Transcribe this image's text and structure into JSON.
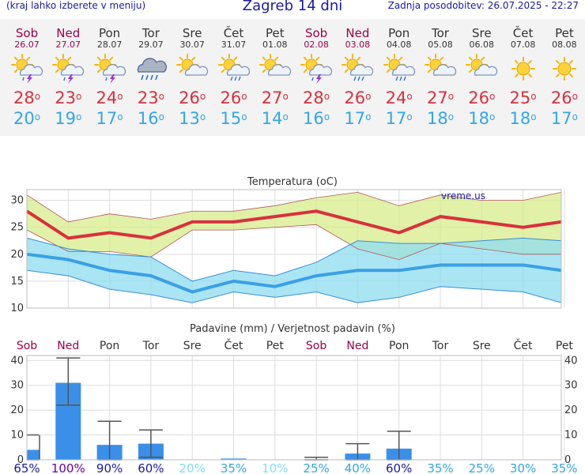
{
  "header": {
    "menu_note": "(kraj lahko izberete v meniju)",
    "title": "Zagreb 14 dni",
    "updated": "Zadnja posodobitev: 26.07.2025 - 22:27"
  },
  "days": [
    {
      "day": "Sob",
      "date": "26.07",
      "weekend": true,
      "icon": "sun-cloud-lightning-icon",
      "max": "28",
      "min": "20"
    },
    {
      "day": "Ned",
      "date": "27.07",
      "weekend": true,
      "icon": "sun-cloud-lightning-icon",
      "max": "23",
      "min": "19"
    },
    {
      "day": "Pon",
      "date": "28.07",
      "weekend": false,
      "icon": "sun-cloud-lightning-icon",
      "max": "24",
      "min": "17"
    },
    {
      "day": "Tor",
      "date": "29.07",
      "weekend": false,
      "icon": "cloud-rain-icon",
      "max": "23",
      "min": "16"
    },
    {
      "day": "Sre",
      "date": "30.07",
      "weekend": false,
      "icon": "sun-cloud-icon",
      "max": "26",
      "min": "13"
    },
    {
      "day": "Čet",
      "date": "31.07",
      "weekend": false,
      "icon": "sun-cloud-rain-icon",
      "max": "26",
      "min": "15"
    },
    {
      "day": "Pet",
      "date": "01.08",
      "weekend": false,
      "icon": "sun-cloud-icon",
      "max": "27",
      "min": "14"
    },
    {
      "day": "Sob",
      "date": "02.08",
      "weekend": true,
      "icon": "sun-cloud-lightning-icon",
      "max": "28",
      "min": "16"
    },
    {
      "day": "Ned",
      "date": "03.08",
      "weekend": true,
      "icon": "sun-cloud-rain-icon",
      "max": "26",
      "min": "17"
    },
    {
      "day": "Pon",
      "date": "04.08",
      "weekend": false,
      "icon": "sun-cloud-rain-icon",
      "max": "24",
      "min": "17"
    },
    {
      "day": "Tor",
      "date": "05.08",
      "weekend": false,
      "icon": "sun-cloud-icon",
      "max": "27",
      "min": "18"
    },
    {
      "day": "Sre",
      "date": "06.08",
      "weekend": false,
      "icon": "sun-cloud-icon",
      "max": "26",
      "min": "18"
    },
    {
      "day": "Čet",
      "date": "07.08",
      "weekend": false,
      "icon": "sun-icon",
      "max": "25",
      "min": "18"
    },
    {
      "day": "Pet",
      "date": "08.08",
      "weekend": false,
      "icon": "sun-icon",
      "max": "26",
      "min": "17"
    }
  ],
  "degree_mark": "o",
  "colors": {
    "max_line": "#d9303e",
    "min_line": "#3aa0e6",
    "max_band": "#d7ec8a",
    "min_band": "#8ddcf0",
    "bar": "#3a8fe8",
    "weekend": "#a0004a",
    "weekday": "#333333",
    "title_blue": "#1a1aa6"
  },
  "chart_data": [
    {
      "type": "line",
      "title": "Temperatura (oC)",
      "watermark": "vreme.us",
      "x": [
        "26.07",
        "27.07",
        "28.07",
        "29.07",
        "30.07",
        "31.07",
        "01.08",
        "02.08",
        "03.08",
        "04.08",
        "05.08",
        "06.08",
        "07.08",
        "08.08"
      ],
      "ylim": [
        10,
        32
      ],
      "yticks": [
        10,
        15,
        20,
        25,
        30
      ],
      "series": [
        {
          "role": "max",
          "values": [
            28,
            23,
            24,
            23,
            26,
            26,
            27,
            28,
            26,
            24,
            27,
            26,
            25,
            26
          ]
        },
        {
          "role": "max_high",
          "values": [
            31,
            26,
            27.5,
            26.5,
            28,
            28,
            29,
            30.5,
            31.5,
            29,
            31,
            30,
            30,
            31.5
          ]
        },
        {
          "role": "max_low",
          "values": [
            24.5,
            20.5,
            20.5,
            19.5,
            24.5,
            24.5,
            25,
            25.5,
            21,
            19,
            22,
            21,
            20,
            20
          ]
        },
        {
          "role": "min",
          "values": [
            20,
            19,
            17,
            16,
            13,
            15,
            14,
            16,
            17,
            17,
            18,
            18,
            18,
            17
          ]
        },
        {
          "role": "min_high",
          "values": [
            23,
            21,
            20,
            19.5,
            15,
            17,
            16,
            18.5,
            22.5,
            22,
            22,
            22.5,
            23,
            22.5
          ]
        },
        {
          "role": "min_low",
          "values": [
            17,
            16,
            13.5,
            12.5,
            11,
            13,
            12,
            13,
            11,
            12,
            14,
            13.5,
            13,
            11
          ]
        }
      ],
      "grid": true
    },
    {
      "type": "bar",
      "title": "Padavine (mm) / Verjetnost padavin (%)",
      "categories": [
        "Sob",
        "Ned",
        "Pon",
        "Tor",
        "Sre",
        "Čet",
        "Pet",
        "Sob",
        "Ned",
        "Pon",
        "Tor",
        "Sre",
        "Čet",
        "Pet"
      ],
      "weekend": [
        true,
        true,
        false,
        false,
        false,
        false,
        false,
        true,
        true,
        false,
        false,
        false,
        false,
        false
      ],
      "values": [
        4,
        31,
        6,
        6.5,
        0,
        0.5,
        0,
        0,
        2.5,
        4.5,
        0,
        0,
        0,
        0
      ],
      "err_low": [
        0,
        22,
        0,
        1,
        0,
        0,
        0,
        0,
        0,
        0,
        0,
        0,
        0,
        0
      ],
      "err_high": [
        10,
        41,
        15.5,
        12,
        0,
        0,
        0,
        1,
        6.5,
        11.5,
        0,
        0,
        0,
        0
      ],
      "probability": [
        "65%",
        "100%",
        "90%",
        "60%",
        "20%",
        "35%",
        "10%",
        "25%",
        "40%",
        "60%",
        "35%",
        "25%",
        "30%",
        "35%"
      ],
      "prob_colors": [
        "#1a1aa6",
        "#6a00a8",
        "#1a1aa6",
        "#1a1aa6",
        "#7fe0f5",
        "#33a6e8",
        "#7fe0f5",
        "#33a6e8",
        "#33a6e8",
        "#1a1aa6",
        "#33a6e8",
        "#33a6e8",
        "#33a6e8",
        "#33a6e8"
      ],
      "ylim": [
        0,
        42
      ],
      "yticks": [
        0,
        10,
        20,
        30,
        40
      ],
      "grid": true
    }
  ]
}
